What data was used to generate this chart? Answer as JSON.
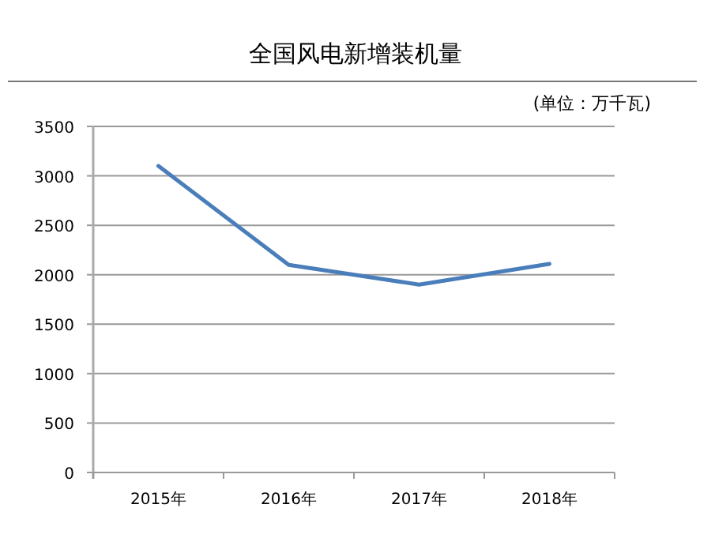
{
  "chart_data": {
    "type": "line",
    "title": "全国风电新增装机量",
    "annotations": [
      "(单位：万千瓦)"
    ],
    "categories": [
      "2015年",
      "2016年",
      "2017年",
      "2018年"
    ],
    "series": [
      {
        "color": "#4a7ebb",
        "values": [
          3100,
          2100,
          1900,
          2110
        ]
      }
    ],
    "ylim": [
      0,
      3500
    ],
    "yticks": [
      0,
      500,
      1000,
      1500,
      2000,
      2500,
      3000,
      3500
    ],
    "grid": "y",
    "marker": "none",
    "line_style": "solid"
  }
}
